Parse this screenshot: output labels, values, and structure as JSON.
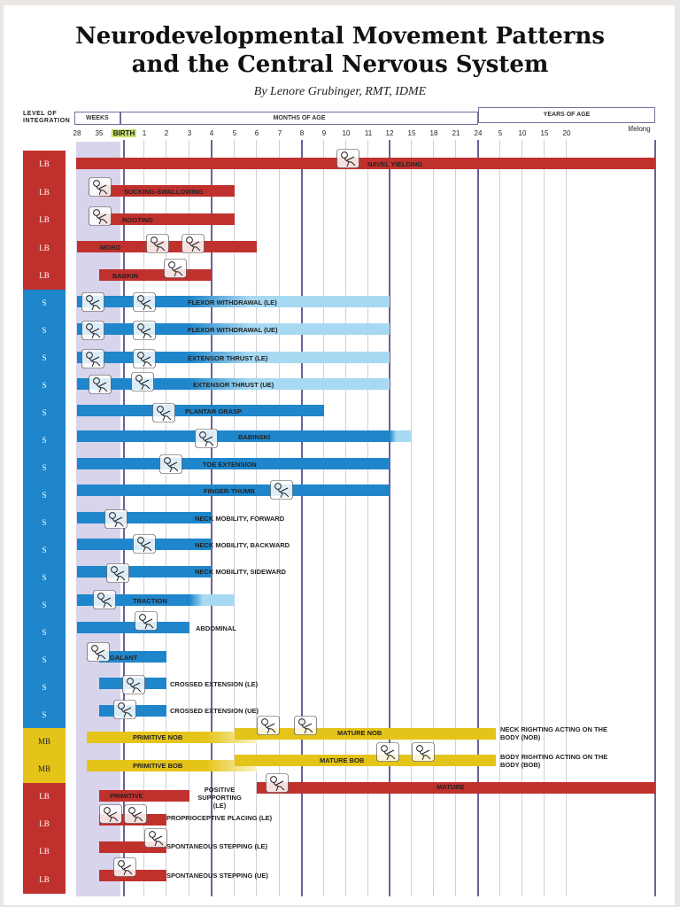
{
  "title_line1": "Neurodevelopmental Movement Patterns",
  "title_line2": "and the Central Nervous System",
  "byline": "By Lenore Grubinger, RMT, IDME",
  "level_header": "LEVEL OF INTEGRATION",
  "header_sections": {
    "weeks": "WEEKS",
    "months": "MONTHS OF AGE",
    "years": "YEARS OF AGE"
  },
  "colors": {
    "LB": "#c0312e",
    "S": "#1f86cc",
    "S_light": "#a7d9f2",
    "MB": "#e5c41a",
    "prenatal": "#d8d4ec",
    "gridline": "#6d6097"
  },
  "chart_data": {
    "type": "timeline",
    "x_ticks": [
      "28",
      "35",
      "BIRTH",
      "1",
      "2",
      "3",
      "4",
      "5",
      "6",
      "7",
      "8",
      "9",
      "10",
      "11",
      "12",
      "15",
      "18",
      "21",
      "24",
      "5",
      "10",
      "15",
      "20",
      "lifelong"
    ],
    "x_units": "weeks (28, 35), months of age (1-24), years of age (5-20), lifelong",
    "rows": [
      {
        "level": "LB",
        "label": "NAVEL YIELDING",
        "segments": [
          {
            "from": "28",
            "to": "lifelong",
            "color": "LB"
          }
        ]
      },
      {
        "level": "LB",
        "label": "SUCKING-SWALLOWING",
        "segments": [
          {
            "from": "35",
            "to": "5",
            "color": "LB"
          }
        ]
      },
      {
        "level": "LB",
        "label": "ROOTING",
        "segments": [
          {
            "from": "35",
            "to": "5",
            "color": "LB"
          }
        ]
      },
      {
        "level": "LB",
        "label": "MORO",
        "segments": [
          {
            "from": "28",
            "to": "6",
            "color": "LB"
          }
        ]
      },
      {
        "level": "LB",
        "label": "BABKIN",
        "segments": [
          {
            "from": "35",
            "to": "4",
            "color": "LB"
          }
        ]
      },
      {
        "level": "S",
        "label": "FLEXOR WITHDRAWAL (LE)",
        "segments": [
          {
            "from": "28",
            "to": "3",
            "color": "S"
          },
          {
            "from": "3",
            "to": "12",
            "color": "S_light"
          }
        ]
      },
      {
        "level": "S",
        "label": "FLEXOR WITHDRAWAL (UE)",
        "segments": [
          {
            "from": "28",
            "to": "3",
            "color": "S"
          },
          {
            "from": "3",
            "to": "12",
            "color": "S_light"
          }
        ]
      },
      {
        "level": "S",
        "label": "EXTENSOR THRUST (LE)",
        "segments": [
          {
            "from": "28",
            "to": "3",
            "color": "S"
          },
          {
            "from": "3",
            "to": "12",
            "color": "S_light"
          }
        ]
      },
      {
        "level": "S",
        "label": "EXTENSOR THRUST (UE)",
        "segments": [
          {
            "from": "28",
            "to": "3",
            "color": "S"
          },
          {
            "from": "3",
            "to": "12",
            "color": "S_light"
          }
        ]
      },
      {
        "level": "S",
        "label": "PLANTAR GRASP",
        "segments": [
          {
            "from": "28",
            "to": "9",
            "color": "S"
          }
        ]
      },
      {
        "level": "S",
        "label": "BABINSKI",
        "segments": [
          {
            "from": "28",
            "to": "12",
            "color": "S"
          },
          {
            "from": "12",
            "to": "15",
            "color": "S_light"
          }
        ]
      },
      {
        "level": "S",
        "label": "TOE EXTENSION",
        "segments": [
          {
            "from": "28",
            "to": "12",
            "color": "S"
          }
        ]
      },
      {
        "level": "S",
        "label": "FINGER-THUMB",
        "segments": [
          {
            "from": "28",
            "to": "12",
            "color": "S"
          }
        ]
      },
      {
        "level": "S",
        "label": "NECK MOBILITY, FORWARD",
        "segments": [
          {
            "from": "28",
            "to": "4",
            "color": "S"
          }
        ]
      },
      {
        "level": "S",
        "label": "NECK MOBILITY, BACKWARD",
        "segments": [
          {
            "from": "28",
            "to": "4",
            "color": "S"
          }
        ]
      },
      {
        "level": "S",
        "label": "NECK MOBILITY, SIDEWARD",
        "segments": [
          {
            "from": "28",
            "to": "4",
            "color": "S"
          }
        ]
      },
      {
        "level": "S",
        "label": "TRACTION",
        "segments": [
          {
            "from": "28",
            "to": "3",
            "color": "S"
          },
          {
            "from": "3",
            "to": "5",
            "color": "S_light"
          }
        ]
      },
      {
        "level": "S",
        "label": "ABDOMINAL",
        "segments": [
          {
            "from": "28",
            "to": "3",
            "color": "S"
          }
        ]
      },
      {
        "level": "S",
        "label": "GALANT",
        "segments": [
          {
            "from": "35",
            "to": "2",
            "color": "S"
          }
        ]
      },
      {
        "level": "S",
        "label": "CROSSED EXTENSION (LE)",
        "segments": [
          {
            "from": "35",
            "to": "2",
            "color": "S"
          }
        ]
      },
      {
        "level": "S",
        "label": "CROSSED EXTENSION (UE)",
        "segments": [
          {
            "from": "35",
            "to": "2",
            "color": "S"
          }
        ]
      },
      {
        "level": "MB",
        "label": "PRIMITIVE NOB",
        "segments": [
          {
            "from": "35",
            "to": "5",
            "color": "MB"
          }
        ]
      },
      {
        "level": "MB",
        "label": "MATURE NOB",
        "segments": [
          {
            "from": "5",
            "to": "24",
            "color": "MB"
          }
        ]
      },
      {
        "level": "MB",
        "label": "NECK RIGHTING ACTING ON THE BODY (NOB)",
        "segments": []
      },
      {
        "level": "MB",
        "label": "PRIMITIVE BOB",
        "segments": [
          {
            "from": "35",
            "to": "5",
            "color": "MB"
          }
        ]
      },
      {
        "level": "MB",
        "label": "MATURE BOB",
        "segments": [
          {
            "from": "5",
            "to": "24",
            "color": "MB"
          }
        ]
      },
      {
        "level": "MB",
        "label": "BODY RIGHTING ACTING ON THE BODY (BOB)",
        "segments": []
      },
      {
        "level": "LB",
        "label": "PRIMITIVE",
        "segments": [
          {
            "from": "35",
            "to": "3",
            "color": "LB"
          }
        ]
      },
      {
        "level": "LB",
        "label": "POSITIVE SUPPORTING (LE)",
        "segments": []
      },
      {
        "level": "LB",
        "label": "MATURE",
        "segments": [
          {
            "from": "6",
            "to": "lifelong",
            "color": "LB"
          }
        ]
      },
      {
        "level": "LB",
        "label": "PROPRIOCEPTIVE PLACING (LE)",
        "segments": [
          {
            "from": "35",
            "to": "2",
            "color": "LB"
          }
        ]
      },
      {
        "level": "LB",
        "label": "SPONTANEOUS STEPPING (LE)",
        "segments": [
          {
            "from": "35",
            "to": "2",
            "color": "LB"
          }
        ]
      },
      {
        "level": "LB",
        "label": "SPONTANEOUS STEPPING (UE)",
        "segments": [
          {
            "from": "35",
            "to": "2",
            "color": "LB"
          }
        ]
      }
    ]
  }
}
